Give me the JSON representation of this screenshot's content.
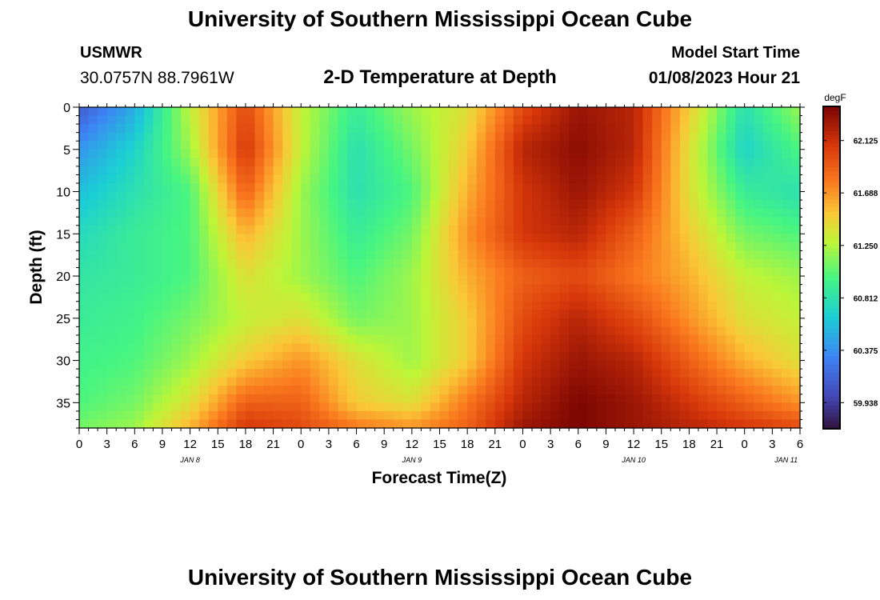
{
  "header": {
    "title": "University of Southern Mississippi Ocean Cube",
    "station": "USMWR",
    "coords": "30.0757N  88.7961W",
    "subtitle": "2-D Temperature at Depth",
    "model_start_label": "Model Start Time",
    "model_start_value": "01/08/2023 Hour 21"
  },
  "footer": {
    "title": "University of Southern Mississippi Ocean Cube"
  },
  "chart_data": {
    "type": "heatmap",
    "title": "2-D Temperature at Depth",
    "xlabel": "Forecast Time(Z)",
    "ylabel": "Depth (ft)",
    "colorbar_unit": "degF",
    "colorbar_ticks": [
      59.938,
      60.375,
      60.812,
      61.25,
      61.688,
      62.125
    ],
    "color_range": [
      59.72,
      62.41
    ],
    "x_tick_labels": [
      "0",
      "3",
      "6",
      "9",
      "12",
      "15",
      "18",
      "21",
      "0",
      "3",
      "6",
      "9",
      "12",
      "15",
      "18",
      "21",
      "0",
      "3",
      "6",
      "9",
      "12",
      "15",
      "18",
      "21",
      "0",
      "3",
      "6"
    ],
    "date_labels": [
      {
        "text": "JAN 8",
        "tick_index": 4
      },
      {
        "text": "JAN 9",
        "tick_index": 12
      },
      {
        "text": "JAN 10",
        "tick_index": 20
      },
      {
        "text": "JAN 11",
        "tick_index": 25.5
      }
    ],
    "y_ticks": [
      0,
      5,
      10,
      15,
      20,
      25,
      30,
      35
    ],
    "ylim": [
      0,
      38
    ],
    "y_inverted": true,
    "x_hours": [
      0,
      6,
      12,
      18,
      24,
      30,
      36,
      42,
      48,
      54,
      60,
      66,
      72,
      78
    ],
    "depths_ft": [
      0,
      5,
      10,
      15,
      20,
      25,
      30,
      35,
      38
    ],
    "temperature_degF": [
      [
        60.1,
        60.5,
        61.3,
        62.0,
        61.3,
        60.9,
        61.2,
        61.4,
        62.0,
        62.3,
        62.2,
        61.5,
        60.8,
        61.2
      ],
      [
        60.4,
        60.7,
        61.2,
        62.1,
        61.3,
        60.8,
        61.1,
        61.5,
        62.2,
        62.35,
        62.2,
        61.4,
        60.7,
        61.0
      ],
      [
        60.6,
        60.8,
        61.0,
        61.9,
        61.2,
        60.8,
        61.0,
        61.6,
        62.1,
        62.3,
        62.1,
        61.4,
        60.9,
        60.8
      ],
      [
        60.75,
        60.9,
        61.0,
        61.6,
        61.2,
        60.9,
        61.1,
        61.7,
        62.1,
        62.2,
        61.9,
        61.5,
        61.1,
        61.0
      ],
      [
        60.85,
        60.9,
        61.0,
        61.4,
        61.2,
        61.0,
        61.2,
        61.6,
        61.9,
        62.0,
        61.8,
        61.6,
        61.3,
        61.2
      ],
      [
        60.9,
        60.95,
        61.1,
        61.3,
        61.4,
        61.1,
        61.2,
        61.5,
        62.0,
        62.2,
        62.0,
        61.7,
        61.4,
        61.3
      ],
      [
        60.95,
        61.0,
        61.2,
        61.5,
        61.7,
        61.4,
        61.2,
        61.5,
        62.1,
        62.3,
        62.2,
        61.9,
        61.6,
        61.4
      ],
      [
        61.0,
        61.1,
        61.4,
        61.9,
        61.9,
        61.5,
        61.4,
        61.8,
        62.2,
        62.4,
        62.3,
        62.1,
        61.9,
        61.7
      ],
      [
        61.1,
        61.2,
        61.6,
        62.1,
        62.0,
        61.8,
        61.7,
        61.9,
        62.3,
        62.4,
        62.3,
        62.2,
        62.1,
        62.0
      ]
    ]
  }
}
